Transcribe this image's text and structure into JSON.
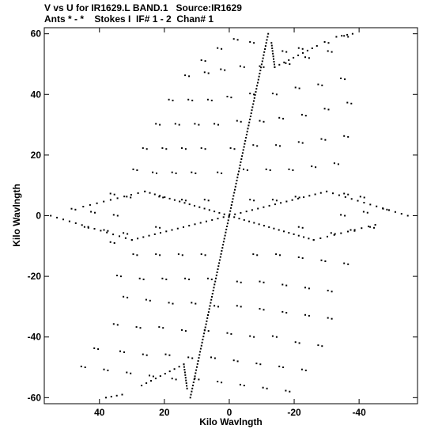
{
  "header": {
    "title_line1": "V vs U for IR1629.L BAND.1   Source:IR1629",
    "title_line2": "Ants * - *    Stokes I  IF# 1 - 2  Chan# 1"
  },
  "chart_data": {
    "type": "scatter",
    "title": "V vs U for IR1629.L BAND.1   Source:IR1629",
    "subtitle": "Ants * - *    Stokes I  IF# 1 - 2  Chan# 1",
    "xlabel": "Kilo Wavlngth",
    "ylabel": "Kilo Wavlngth",
    "xlim": [
      57,
      -58
    ],
    "ylim": [
      -62,
      62
    ],
    "x_reversed": true,
    "x_ticks": [
      40,
      20,
      0,
      -20,
      -40
    ],
    "x_tick_labels": [
      "40",
      "20",
      "0",
      "-20",
      "-40"
    ],
    "y_ticks": [
      60,
      40,
      20,
      0,
      -20,
      -40,
      -60
    ],
    "y_tick_labels": [
      "60",
      "40",
      "20",
      "0",
      "-20",
      "-40",
      "-60"
    ],
    "grid": false,
    "legend": "none",
    "point_color": "#000000",
    "series": [
      {
        "tracks": [
          {
            "from": [
              -12,
              60
            ],
            "to": [
              12,
              -60
            ],
            "points": 120
          },
          {
            "from": [
              -13,
              57
            ],
            "to": [
              -14,
              49
            ],
            "points": 10
          },
          {
            "from": [
              -14,
              49
            ],
            "to": [
              -27,
              56
            ],
            "points": 10
          },
          {
            "from": [
              -33,
              59
            ],
            "to": [
              -38,
              60
            ],
            "points": 4
          },
          {
            "from": [
              13,
              -57
            ],
            "to": [
              14,
              -49
            ],
            "points": 10
          },
          {
            "from": [
              14,
              -49
            ],
            "to": [
              27,
              -56
            ],
            "points": 10
          },
          {
            "from": [
              33,
              -59
            ],
            "to": [
              38,
              -60
            ],
            "points": 4
          },
          {
            "from": [
              26,
              8
            ],
            "to": [
              0,
              0
            ],
            "points": 18
          },
          {
            "from": [
              0,
              0
            ],
            "to": [
              -26,
              -8
            ],
            "points": 18
          },
          {
            "from": [
              -30,
              8
            ],
            "to": [
              0,
              0
            ],
            "points": 18
          },
          {
            "from": [
              0,
              0
            ],
            "to": [
              30,
              -8
            ],
            "points": 18
          },
          {
            "from": [
              -30,
              8
            ],
            "to": [
              -55,
              0
            ],
            "points": 14
          },
          {
            "from": [
              30,
              -8
            ],
            "to": [
              55,
              0
            ],
            "points": 14
          },
          {
            "from": [
              26,
              8
            ],
            "to": [
              45,
              3
            ],
            "points": 10
          },
          {
            "from": [
              -26,
              -8
            ],
            "to": [
              -45,
              -3
            ],
            "points": 10
          }
        ],
        "scatter_points": [
          [
            8,
            51
          ],
          [
            3,
            55
          ],
          [
            -2,
            58
          ],
          [
            -7,
            57
          ],
          [
            -17,
            54
          ],
          [
            -22,
            55
          ],
          [
            -30,
            57
          ],
          [
            -36,
            59
          ],
          [
            13,
            46
          ],
          [
            7,
            47
          ],
          [
            2,
            48
          ],
          [
            -4,
            49
          ],
          [
            -10,
            49
          ],
          [
            -18,
            50
          ],
          [
            -24,
            52
          ],
          [
            -31,
            54
          ],
          [
            18,
            38
          ],
          [
            12,
            38
          ],
          [
            6,
            38
          ],
          [
            0,
            39
          ],
          [
            -7,
            40
          ],
          [
            -14,
            40
          ],
          [
            -21,
            42
          ],
          [
            -28,
            43
          ],
          [
            -35,
            45
          ],
          [
            22,
            30
          ],
          [
            16,
            30
          ],
          [
            10,
            30
          ],
          [
            4,
            30
          ],
          [
            -3,
            31
          ],
          [
            -10,
            31
          ],
          [
            -16,
            32
          ],
          [
            -23,
            33
          ],
          [
            -30,
            35
          ],
          [
            -37,
            37
          ],
          [
            26,
            22
          ],
          [
            20,
            22
          ],
          [
            14,
            22
          ],
          [
            8,
            22
          ],
          [
            -1,
            22
          ],
          [
            -8,
            23
          ],
          [
            -15,
            23
          ],
          [
            -22,
            24
          ],
          [
            -29,
            25
          ],
          [
            -36,
            26
          ],
          [
            29,
            15
          ],
          [
            23,
            14
          ],
          [
            17,
            14
          ],
          [
            11,
            14
          ],
          [
            3,
            14
          ],
          [
            -5,
            15
          ],
          [
            -12,
            15
          ],
          [
            -19,
            15
          ],
          [
            -26,
            16
          ],
          [
            -33,
            17
          ],
          [
            36,
            7
          ],
          [
            31,
            6
          ],
          [
            21,
            6
          ],
          [
            14,
            5
          ],
          [
            7,
            5
          ],
          [
            -7,
            5
          ],
          [
            -14,
            5
          ],
          [
            -21,
            6
          ],
          [
            -36,
            7
          ],
          [
            -41,
            6
          ],
          [
            48,
            2
          ],
          [
            42,
            1
          ],
          [
            35,
            0
          ],
          [
            -35,
            0
          ],
          [
            -42,
            1
          ],
          [
            -48,
            2
          ],
          [
            44,
            -4
          ],
          [
            38,
            -5
          ],
          [
            32,
            -6
          ],
          [
            22,
            -4
          ],
          [
            -22,
            -4
          ],
          [
            -32,
            -6
          ],
          [
            -38,
            -5
          ],
          [
            -44,
            -4
          ],
          [
            36,
            -9
          ],
          [
            29,
            -13
          ],
          [
            22,
            -13
          ],
          [
            15,
            -13
          ],
          [
            8,
            -13
          ],
          [
            -8,
            -13
          ],
          [
            -15,
            -13
          ],
          [
            -22,
            -14
          ],
          [
            -29,
            -15
          ],
          [
            -36,
            -16
          ],
          [
            34,
            -20
          ],
          [
            27,
            -21
          ],
          [
            20,
            -21
          ],
          [
            13,
            -21
          ],
          [
            6,
            -21
          ],
          [
            -3,
            -22
          ],
          [
            -10,
            -22
          ],
          [
            -17,
            -23
          ],
          [
            -24,
            -24
          ],
          [
            -31,
            -25
          ],
          [
            32,
            -27
          ],
          [
            25,
            -28
          ],
          [
            18,
            -29
          ],
          [
            11,
            -29
          ],
          [
            4,
            -30
          ],
          [
            -3,
            -30
          ],
          [
            -10,
            -31
          ],
          [
            -17,
            -32
          ],
          [
            -24,
            -33
          ],
          [
            -31,
            -34
          ],
          [
            35,
            -36
          ],
          [
            28,
            -37
          ],
          [
            21,
            -37
          ],
          [
            14,
            -38
          ],
          [
            7,
            -38
          ],
          [
            0,
            -39
          ],
          [
            -7,
            -40
          ],
          [
            -14,
            -40
          ],
          [
            -21,
            -42
          ],
          [
            -28,
            -43
          ],
          [
            41,
            -44
          ],
          [
            33,
            -45
          ],
          [
            26,
            -46
          ],
          [
            19,
            -46
          ],
          [
            12,
            -47
          ],
          [
            5,
            -47
          ],
          [
            -2,
            -48
          ],
          [
            -9,
            -49
          ],
          [
            -16,
            -50
          ],
          [
            -23,
            -51
          ],
          [
            45,
            -50
          ],
          [
            38,
            -51
          ],
          [
            31,
            -52
          ],
          [
            24,
            -53
          ],
          [
            17,
            -54
          ],
          [
            10,
            -54
          ],
          [
            3,
            -55
          ],
          [
            -4,
            -56
          ],
          [
            -11,
            -57
          ],
          [
            -18,
            -58
          ]
        ]
      }
    ]
  }
}
